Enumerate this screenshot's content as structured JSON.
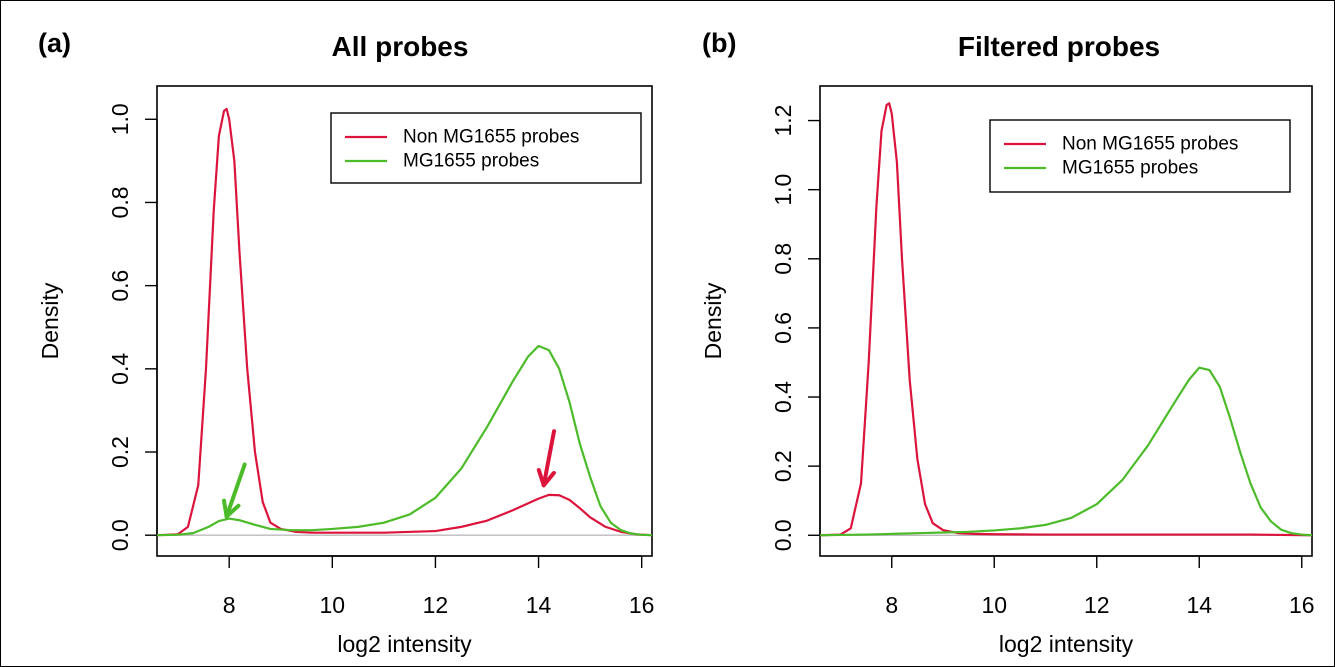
{
  "colors": {
    "non_mg1655": "#dc143c",
    "mg1655": "#4cbb2a",
    "baseline": "#bbbbbb",
    "frame": "#000000"
  },
  "chart_data": [
    {
      "type": "line",
      "panel_label": "(a)",
      "title": "All probes",
      "xlabel": "log2 intensity",
      "ylabel": "Density",
      "xlim": [
        6.6,
        16.2
      ],
      "ylim": [
        -0.05,
        1.08
      ],
      "xticks": [
        8,
        10,
        12,
        14,
        16
      ],
      "yticks": [
        0.0,
        0.2,
        0.4,
        0.6,
        0.8,
        1.0
      ],
      "legend_position": "top-right",
      "grid": false,
      "baseline_y": 0,
      "series": [
        {
          "name": "Non MG1655 probes",
          "color_key": "non_mg1655",
          "x": [
            6.6,
            7.0,
            7.2,
            7.4,
            7.55,
            7.7,
            7.8,
            7.9,
            7.95,
            8.0,
            8.1,
            8.2,
            8.35,
            8.5,
            8.65,
            8.8,
            9.0,
            9.3,
            9.6,
            10.0,
            11.0,
            12.0,
            12.5,
            13.0,
            13.5,
            14.0,
            14.2,
            14.4,
            14.6,
            14.8,
            15.0,
            15.3,
            15.6,
            15.9,
            16.2
          ],
          "y": [
            0.0,
            0.002,
            0.02,
            0.12,
            0.4,
            0.78,
            0.96,
            1.02,
            1.025,
            1.0,
            0.9,
            0.68,
            0.4,
            0.2,
            0.08,
            0.03,
            0.015,
            0.008,
            0.006,
            0.006,
            0.006,
            0.01,
            0.02,
            0.035,
            0.06,
            0.088,
            0.097,
            0.096,
            0.085,
            0.065,
            0.043,
            0.02,
            0.008,
            0.002,
            0.0
          ]
        },
        {
          "name": "MG1655 probes",
          "color_key": "mg1655",
          "x": [
            6.6,
            7.0,
            7.3,
            7.6,
            7.8,
            8.0,
            8.2,
            8.5,
            8.8,
            9.2,
            9.6,
            10.0,
            10.5,
            11.0,
            11.5,
            12.0,
            12.5,
            13.0,
            13.5,
            13.8,
            14.0,
            14.2,
            14.4,
            14.6,
            14.8,
            15.0,
            15.2,
            15.4,
            15.6,
            15.8,
            16.0,
            16.2
          ],
          "y": [
            0.0,
            0.001,
            0.005,
            0.02,
            0.034,
            0.04,
            0.036,
            0.025,
            0.015,
            0.012,
            0.012,
            0.015,
            0.02,
            0.03,
            0.05,
            0.09,
            0.16,
            0.26,
            0.37,
            0.43,
            0.455,
            0.445,
            0.4,
            0.32,
            0.22,
            0.14,
            0.07,
            0.03,
            0.012,
            0.004,
            0.001,
            0.0
          ]
        }
      ],
      "annotations": [
        {
          "type": "arrow",
          "color_key": "mg1655",
          "from": [
            8.3,
            0.17
          ],
          "to": [
            7.95,
            0.045
          ]
        },
        {
          "type": "arrow",
          "color_key": "non_mg1655",
          "from": [
            14.3,
            0.25
          ],
          "to": [
            14.1,
            0.12
          ]
        }
      ]
    },
    {
      "type": "line",
      "panel_label": "(b)",
      "title": "Filtered probes",
      "xlabel": "log2 intensity",
      "ylabel": "Density",
      "xlim": [
        6.6,
        16.2
      ],
      "ylim": [
        -0.06,
        1.3
      ],
      "xticks": [
        8,
        10,
        12,
        14,
        16
      ],
      "yticks": [
        0.0,
        0.2,
        0.4,
        0.6,
        0.8,
        1.0,
        1.2
      ],
      "legend_position": "top-right",
      "grid": false,
      "baseline_y": 0,
      "series": [
        {
          "name": "Non MG1655 probes",
          "color_key": "non_mg1655",
          "x": [
            6.6,
            7.0,
            7.2,
            7.4,
            7.55,
            7.7,
            7.8,
            7.9,
            7.95,
            8.0,
            8.1,
            8.2,
            8.35,
            8.5,
            8.65,
            8.8,
            9.0,
            9.3,
            9.6,
            10.0,
            11.0,
            12.0,
            13.0,
            14.0,
            15.0,
            16.2
          ],
          "y": [
            0.0,
            0.002,
            0.02,
            0.15,
            0.5,
            0.95,
            1.17,
            1.245,
            1.25,
            1.22,
            1.08,
            0.8,
            0.45,
            0.22,
            0.09,
            0.035,
            0.015,
            0.006,
            0.004,
            0.003,
            0.002,
            0.002,
            0.002,
            0.002,
            0.002,
            0.0
          ]
        },
        {
          "name": "MG1655 probes",
          "color_key": "mg1655",
          "x": [
            6.6,
            7.0,
            7.5,
            8.0,
            8.5,
            9.0,
            9.5,
            10.0,
            10.5,
            11.0,
            11.5,
            12.0,
            12.5,
            13.0,
            13.5,
            13.8,
            14.0,
            14.2,
            14.4,
            14.6,
            14.8,
            15.0,
            15.2,
            15.4,
            15.6,
            15.8,
            16.0,
            16.2
          ],
          "y": [
            0.0,
            0.001,
            0.002,
            0.004,
            0.006,
            0.008,
            0.01,
            0.014,
            0.02,
            0.03,
            0.05,
            0.09,
            0.16,
            0.26,
            0.38,
            0.45,
            0.485,
            0.478,
            0.43,
            0.34,
            0.24,
            0.15,
            0.08,
            0.04,
            0.016,
            0.006,
            0.002,
            0.0
          ]
        }
      ],
      "annotations": []
    }
  ]
}
